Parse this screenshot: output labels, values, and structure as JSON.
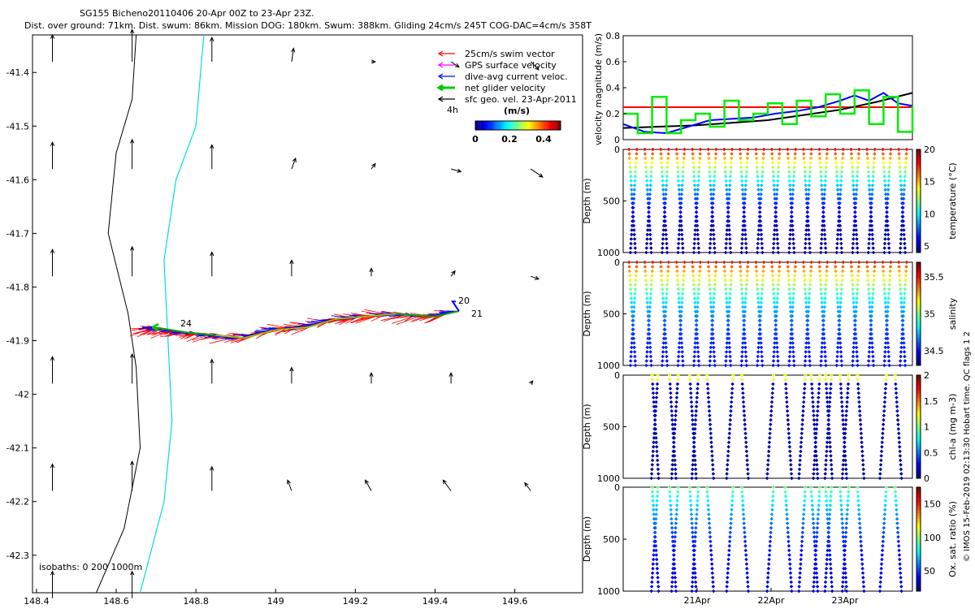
{
  "title_line1": "SG155 Bicheno20110406 20-Apr 00Z to 23-Apr 23Z.",
  "title_line2": "Dist. over ground: 71km. Dist. swum: 86km. Mission DOG: 180km. Swum: 388km. Gliding 24cm/s 245T COG-DAC=4cm/s 358T",
  "credit": "© IMOS 15-Feb-2019 02:13:30 Hobart time. QC flags 1  2",
  "colors": {
    "swim": "#ff0000",
    "gps": "#ff00ff",
    "dac": "#0000ff",
    "net": "#00cc00",
    "sfc": "#000000",
    "coast": "#00dddd"
  },
  "chart_data": [
    {
      "id": "map",
      "type": "scatter",
      "x_ticks": [
        "148.4",
        "148.6",
        "148.8",
        "149",
        "149.2",
        "149.4",
        "149.6"
      ],
      "y_ticks": [
        "-41.4",
        "-41.5",
        "-41.6",
        "-41.7",
        "-41.8",
        "-41.9",
        "-42",
        "-42.1",
        "-42.2",
        "-42.3"
      ],
      "xlim": [
        148.39,
        149.77
      ],
      "ylim": [
        -42.37,
        -41.33
      ],
      "legend": [
        {
          "label": "25cm/s swim vector",
          "color": "#ff0000"
        },
        {
          "label": "GPS surface velocity",
          "color": "#ff00ff"
        },
        {
          "label": "dive-avg current veloc.",
          "color": "#0000ff"
        },
        {
          "label": "net glider velocity",
          "color": "#00cc00"
        },
        {
          "label": "sfc geo. vel. 23-Apr-2011",
          "color": "#000000"
        }
      ],
      "legend_scale_label": "4h",
      "colorbar": {
        "label": "(m/s)",
        "ticks": [
          "0",
          "0.2",
          "0.4"
        ],
        "range": [
          0,
          0.5
        ]
      },
      "isobath_label": "isobaths: 0   200  1000m",
      "track_labels": [
        "20",
        "21",
        "24"
      ],
      "track": [
        [
          149.46,
          -41.845
        ],
        [
          149.4,
          -41.855
        ],
        [
          149.3,
          -41.85
        ],
        [
          149.22,
          -41.855
        ],
        [
          149.15,
          -41.86
        ],
        [
          149.08,
          -41.875
        ],
        [
          149.0,
          -41.88
        ],
        [
          148.92,
          -41.895
        ],
        [
          148.85,
          -41.89
        ],
        [
          148.78,
          -41.885
        ],
        [
          148.72,
          -41.878
        ],
        [
          148.69,
          -41.875
        ]
      ],
      "sfc_vectors": [
        [
          148.44,
          -41.38,
          0.0,
          0.05
        ],
        [
          148.64,
          -41.38,
          0.0,
          0.06
        ],
        [
          148.84,
          -41.38,
          0.0,
          0.045
        ],
        [
          149.04,
          -41.38,
          0.005,
          0.025
        ],
        [
          149.24,
          -41.38,
          0.01,
          0.0
        ],
        [
          149.44,
          -41.38,
          0.02,
          -0.01
        ],
        [
          149.64,
          -41.38,
          0.02,
          -0.015
        ],
        [
          148.44,
          -41.58,
          0.0,
          0.05
        ],
        [
          148.64,
          -41.58,
          0.0,
          0.055
        ],
        [
          148.84,
          -41.58,
          0.0,
          0.045
        ],
        [
          149.04,
          -41.58,
          0.01,
          0.02
        ],
        [
          149.24,
          -41.58,
          0.01,
          0.01
        ],
        [
          149.44,
          -41.58,
          0.025,
          -0.005
        ],
        [
          149.64,
          -41.58,
          0.03,
          -0.015
        ],
        [
          148.44,
          -41.78,
          0.0,
          0.05
        ],
        [
          148.64,
          -41.78,
          0.0,
          0.055
        ],
        [
          148.84,
          -41.78,
          0.0,
          0.045
        ],
        [
          149.04,
          -41.78,
          0.0,
          0.03
        ],
        [
          149.24,
          -41.78,
          0.0,
          0.015
        ],
        [
          149.44,
          -41.78,
          0.01,
          0.01
        ],
        [
          149.64,
          -41.78,
          0.02,
          -0.005
        ],
        [
          148.44,
          -41.98,
          0.0,
          0.05
        ],
        [
          148.64,
          -41.98,
          0.0,
          0.055
        ],
        [
          148.84,
          -41.98,
          0.0,
          0.045
        ],
        [
          149.04,
          -41.98,
          0.0,
          0.03
        ],
        [
          149.24,
          -41.98,
          0.0,
          0.02
        ],
        [
          149.44,
          -41.98,
          0.0,
          0.02
        ],
        [
          149.64,
          -41.98,
          0.005,
          0.005
        ],
        [
          148.44,
          -42.18,
          0.0,
          0.05
        ],
        [
          148.64,
          -42.18,
          0.0,
          0.055
        ],
        [
          148.84,
          -42.18,
          0.0,
          0.045
        ],
        [
          149.04,
          -42.18,
          -0.01,
          0.02
        ],
        [
          149.24,
          -42.18,
          -0.015,
          0.02
        ],
        [
          149.44,
          -42.18,
          -0.02,
          0.02
        ],
        [
          149.64,
          -42.18,
          -0.015,
          0.015
        ],
        [
          148.44,
          -42.38,
          0.0,
          0.05
        ],
        [
          148.64,
          -42.38,
          0.0,
          0.05
        ]
      ],
      "isobath_0": [
        [
          148.65,
          -41.33
        ],
        [
          148.64,
          -41.45
        ],
        [
          148.6,
          -41.55
        ],
        [
          148.58,
          -41.7
        ],
        [
          148.63,
          -41.85
        ],
        [
          148.65,
          -41.95
        ],
        [
          148.66,
          -42.1
        ],
        [
          148.62,
          -42.25
        ],
        [
          148.55,
          -42.37
        ]
      ],
      "isobath_1000": [
        [
          148.82,
          -41.33
        ],
        [
          148.8,
          -41.5
        ],
        [
          148.75,
          -41.6
        ],
        [
          148.72,
          -41.75
        ],
        [
          148.73,
          -41.9
        ],
        [
          148.74,
          -42.05
        ],
        [
          148.72,
          -42.2
        ],
        [
          148.66,
          -42.37
        ]
      ]
    },
    {
      "id": "velocity",
      "type": "line",
      "ylabel": "velocity magnitude (m/s)",
      "ylim": [
        0,
        0.8
      ],
      "y_ticks": [
        "0",
        "0.2",
        "0.4",
        "0.6",
        "0.8"
      ],
      "series": [
        {
          "color": "#ff0000",
          "x": [
            0,
            4
          ],
          "values": [
            0.25,
            0.25
          ]
        },
        {
          "color": "#000000",
          "x": [
            0,
            0.5,
            1,
            1.5,
            2,
            2.5,
            3,
            3.5,
            4
          ],
          "values": [
            0.09,
            0.1,
            0.11,
            0.13,
            0.15,
            0.19,
            0.23,
            0.29,
            0.36
          ]
        },
        {
          "color": "#0000ff",
          "x": [
            0,
            0.3,
            0.6,
            0.9,
            1.2,
            1.5,
            1.8,
            2.1,
            2.4,
            2.7,
            3.0,
            3.2,
            3.4,
            3.6,
            3.8,
            4.0
          ],
          "values": [
            0.12,
            0.06,
            0.05,
            0.1,
            0.15,
            0.16,
            0.17,
            0.2,
            0.22,
            0.25,
            0.3,
            0.34,
            0.3,
            0.36,
            0.28,
            0.26
          ]
        },
        {
          "color": "#00ee00",
          "x": [
            0,
            0.2,
            0.4,
            0.6,
            0.8,
            1.0,
            1.2,
            1.4,
            1.6,
            1.8,
            2.0,
            2.2,
            2.4,
            2.6,
            2.8,
            3.0,
            3.2,
            3.4,
            3.6,
            3.8,
            4.0
          ],
          "values": [
            0.2,
            0.05,
            0.33,
            0.05,
            0.15,
            0.2,
            0.1,
            0.3,
            0.15,
            0.2,
            0.28,
            0.12,
            0.3,
            0.18,
            0.35,
            0.2,
            0.38,
            0.12,
            0.33,
            0.06,
            0.26
          ]
        }
      ]
    },
    {
      "id": "temperature",
      "type": "heatmap",
      "ylabel": "Depth (m)",
      "clabel": "temperature (°C)",
      "clim": [
        4,
        20
      ],
      "cticks": [
        "20",
        "15",
        "10",
        "5"
      ],
      "y_ticks": [
        "0",
        "500",
        "1000"
      ],
      "surface_value": 18,
      "deep_value": 4.5
    },
    {
      "id": "salinity",
      "type": "heatmap",
      "ylabel": "Depth (m)",
      "clabel": "salinity",
      "clim": [
        34.3,
        35.7
      ],
      "cticks": [
        "35.5",
        "35",
        "34.5"
      ],
      "y_ticks": [
        "0",
        "500",
        "1000"
      ],
      "surface_value": 35.5,
      "deep_value": 34.5
    },
    {
      "id": "chla",
      "type": "heatmap",
      "ylabel": "Depth (m)",
      "clabel": "chl-a (mg m-3)",
      "clim": [
        0,
        2
      ],
      "cticks": [
        "2",
        "1.5",
        "1",
        "0.5",
        "0"
      ],
      "y_ticks": [
        "0",
        "500",
        "1000"
      ],
      "surface_value": 1.2,
      "deep_value": 0.05
    },
    {
      "id": "oxygen",
      "type": "heatmap",
      "ylabel": "Depth (m)",
      "clabel": "Ox. sat. ratio (%)",
      "clim": [
        20,
        175
      ],
      "cticks": [
        "150",
        "100",
        "50"
      ],
      "y_ticks": [
        "0",
        "500",
        "1000"
      ],
      "surface_value": 95,
      "deep_value": 35,
      "x_ticks": [
        "21Apr",
        "22Apr",
        "23Apr"
      ]
    }
  ]
}
